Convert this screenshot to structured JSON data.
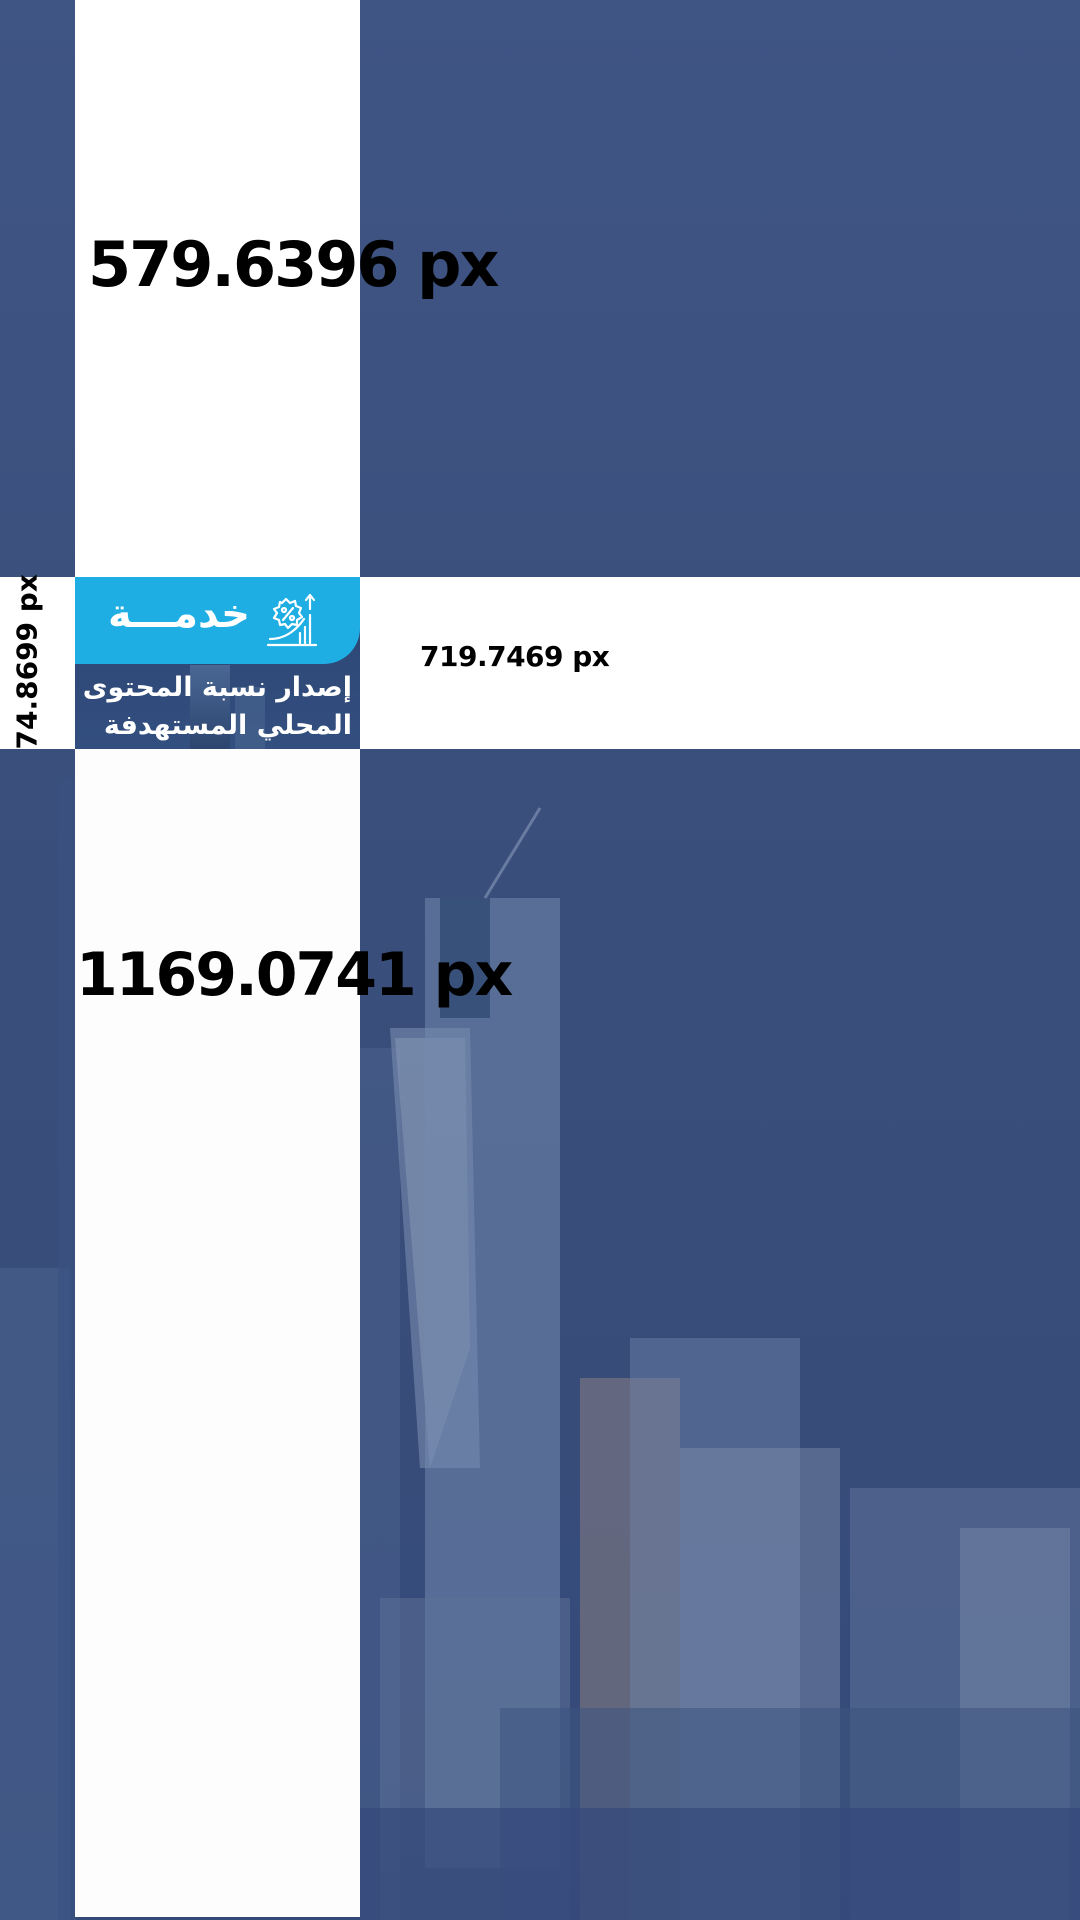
{
  "measurements": {
    "top_column_height": "579.6396 px",
    "band_width": "719.7469 px",
    "band_height": "74.8699 px",
    "bottom_column_height": "1169.0741 px"
  },
  "card": {
    "badge_label": "خدمـــة",
    "badge_icon": "percent-growth-chart-icon",
    "title": "إصدار نسبة المحتوى المحلي المستهدفة"
  },
  "colors": {
    "background_blue": "#3e527f",
    "badge_cyan": "#1eaee4",
    "panel_white": "#ffffff"
  }
}
